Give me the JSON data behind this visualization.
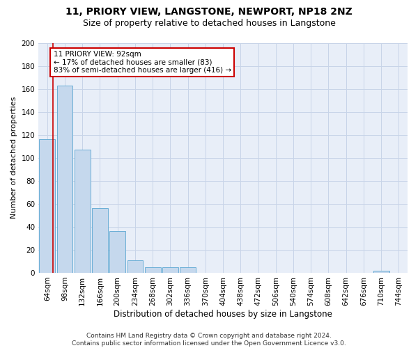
{
  "title1": "11, PRIORY VIEW, LANGSTONE, NEWPORT, NP18 2NZ",
  "title2": "Size of property relative to detached houses in Langstone",
  "xlabel": "Distribution of detached houses by size in Langstone",
  "ylabel": "Number of detached properties",
  "bar_labels": [
    "64sqm",
    "98sqm",
    "132sqm",
    "166sqm",
    "200sqm",
    "234sqm",
    "268sqm",
    "302sqm",
    "336sqm",
    "370sqm",
    "404sqm",
    "438sqm",
    "472sqm",
    "506sqm",
    "540sqm",
    "574sqm",
    "608sqm",
    "642sqm",
    "676sqm",
    "710sqm",
    "744sqm"
  ],
  "bar_values": [
    116,
    163,
    107,
    56,
    36,
    11,
    5,
    5,
    5,
    0,
    0,
    0,
    0,
    0,
    0,
    0,
    0,
    0,
    0,
    2,
    0
  ],
  "bar_color": "#c5d8ed",
  "bar_edge_color": "#6aaed6",
  "annotation_text": "11 PRIORY VIEW: 92sqm\n← 17% of detached houses are smaller (83)\n83% of semi-detached houses are larger (416) →",
  "annotation_box_facecolor": "#ffffff",
  "annotation_box_edgecolor": "#cc0000",
  "vline_color": "#cc0000",
  "ylim": [
    0,
    200
  ],
  "yticks": [
    0,
    20,
    40,
    60,
    80,
    100,
    120,
    140,
    160,
    180,
    200
  ],
  "grid_color": "#c8d4e8",
  "bg_color": "#e8eef8",
  "footer_text": "Contains HM Land Registry data © Crown copyright and database right 2024.\nContains public sector information licensed under the Open Government Licence v3.0.",
  "title1_fontsize": 10,
  "title2_fontsize": 9,
  "xlabel_fontsize": 8.5,
  "ylabel_fontsize": 8,
  "tick_fontsize": 7.5,
  "annotation_fontsize": 7.5,
  "footer_fontsize": 6.5
}
